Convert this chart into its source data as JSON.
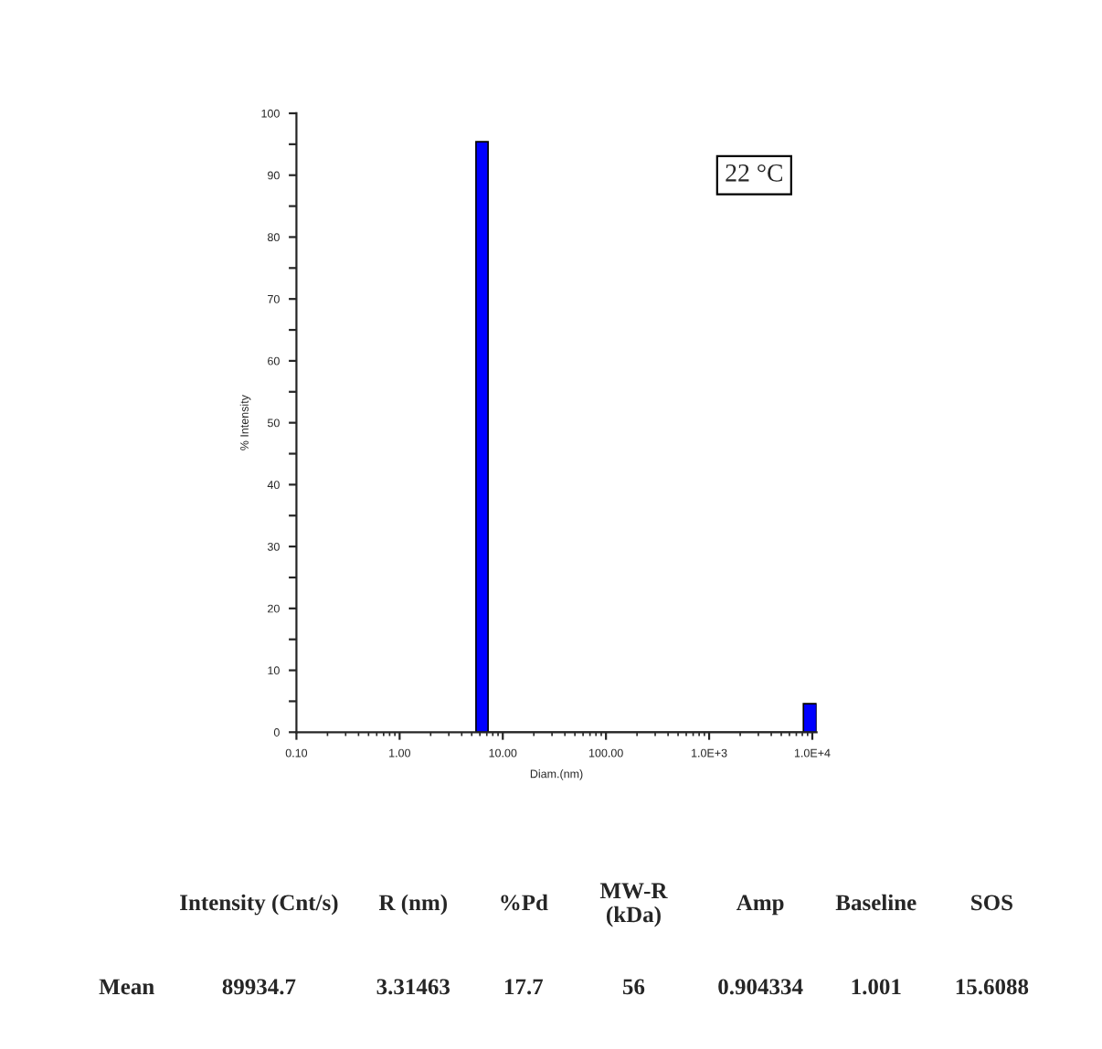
{
  "chart_data": {
    "type": "histogram",
    "xlabel": "Diam.(nm)",
    "ylabel": "% Intensity",
    "bins": [
      5.5,
      7.2,
      8200,
      11000
    ],
    "values": [
      95.4,
      0,
      4.6
    ],
    "color": "#0000ff",
    "log": "x",
    "xlim": [
      0.1,
      11000
    ],
    "xticks": [
      {
        "value": 0.1,
        "label": "0.10"
      },
      {
        "value": 1,
        "label": "1.00"
      },
      {
        "value": 10,
        "label": "10.00"
      },
      {
        "value": 100,
        "label": "100.00"
      },
      {
        "value": 1000,
        "label": "1.0E+3"
      },
      {
        "value": 10000,
        "label": "1.0E+4"
      }
    ],
    "ylim": [
      0,
      100
    ],
    "yticks": [
      0,
      {
        "value": 5,
        "label": null
      },
      10,
      {
        "value": 15,
        "label": null
      },
      20,
      {
        "value": 25,
        "label": null
      },
      30,
      {
        "value": 35,
        "label": null
      },
      40,
      {
        "value": 45,
        "label": null
      },
      50,
      {
        "value": 55,
        "label": null
      },
      60,
      {
        "value": 65,
        "label": null
      },
      70,
      {
        "value": 75,
        "label": null
      },
      80,
      {
        "value": 85,
        "label": null
      },
      90,
      {
        "value": 95,
        "label": null
      },
      100
    ],
    "grid": false,
    "annotations": [
      "22 °C",
      "Intensity (Cnt/s)",
      "R (nm)",
      "%Pd",
      "MW-R\n(kDa)",
      "Amp",
      "Baseline",
      "SOS",
      "Mean",
      "89934.7",
      "3.31463",
      "17.7",
      "56",
      "0.904334",
      "1.001",
      "15.6088"
    ]
  }
}
